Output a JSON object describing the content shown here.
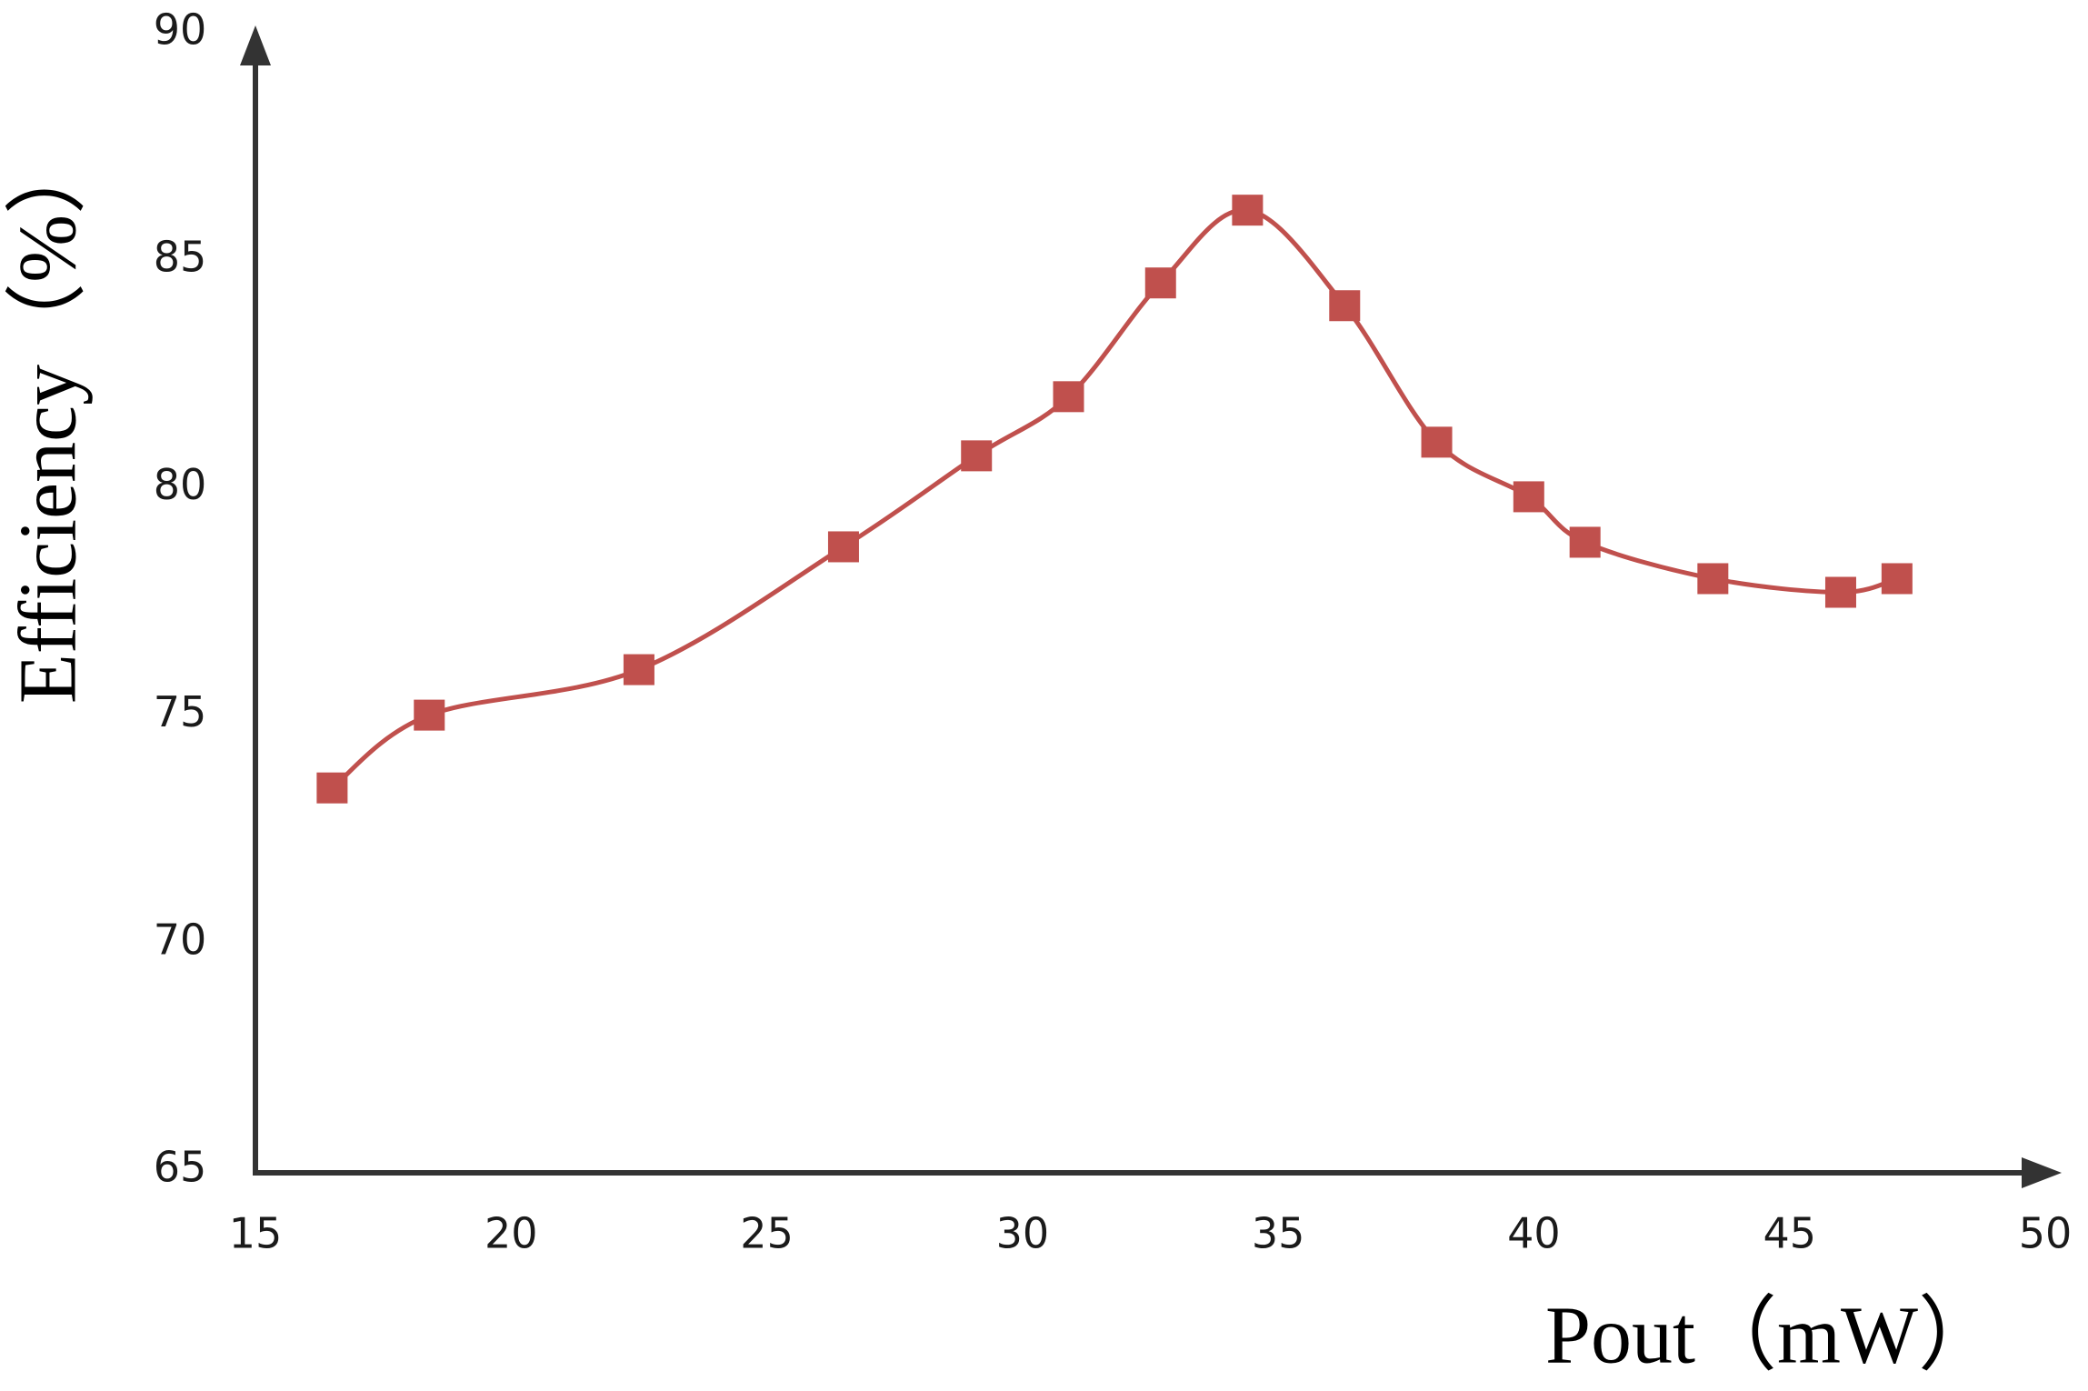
{
  "chart_data": {
    "type": "line",
    "x_label": "Pout（mW）",
    "y_label": "Efficiency（%）",
    "series": [
      {
        "name": "Efficiency",
        "color": "#c0504d",
        "x": [
          16.5,
          18.4,
          22.5,
          26.5,
          29.1,
          30.9,
          32.7,
          34.4,
          36.3,
          38.1,
          39.9,
          41.0,
          43.5,
          46.0,
          47.1
        ],
        "values": [
          73.4,
          75.0,
          76.0,
          78.7,
          80.7,
          82.0,
          84.5,
          86.1,
          84.0,
          81.0,
          79.8,
          78.8,
          78.0,
          77.7,
          78.0
        ]
      }
    ],
    "xlim": [
      15,
      50
    ],
    "xticks": [
      15,
      20,
      25,
      30,
      35,
      40,
      45,
      50
    ],
    "ylim": [
      65,
      90
    ],
    "yticks": [
      65,
      70,
      75,
      80,
      85,
      90
    ],
    "smooth": true,
    "marker": "square",
    "grid": false
  }
}
